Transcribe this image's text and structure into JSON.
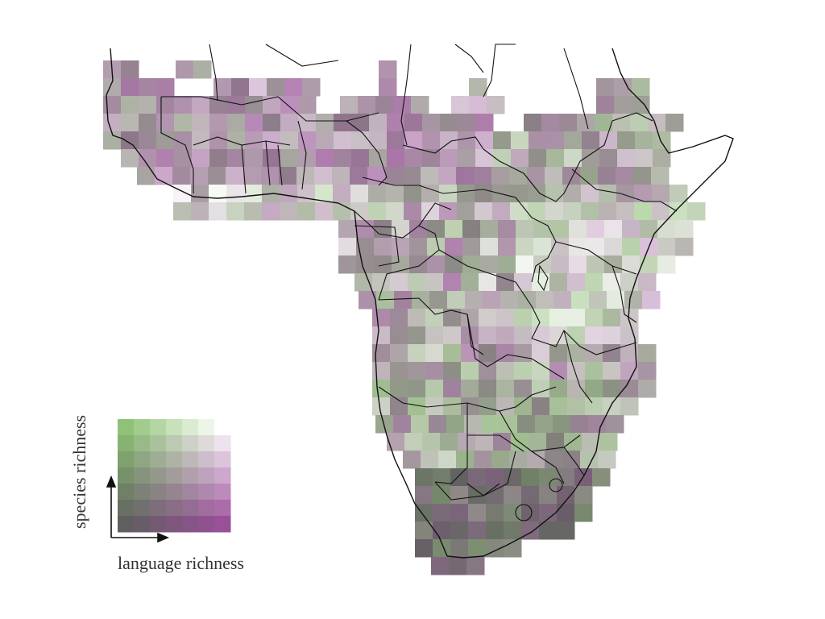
{
  "legend": {
    "x_label": "language richness",
    "y_label": "species richness",
    "palette": {
      "low_low": "#5f5f5f",
      "high_species": "#8fc276",
      "high_language": "#9a4f99",
      "high_high": "#ffffff"
    }
  },
  "map": {
    "region": "Sub-Saharan Africa",
    "border_color": "#111111",
    "ocean_color": "#ffffff"
  }
}
